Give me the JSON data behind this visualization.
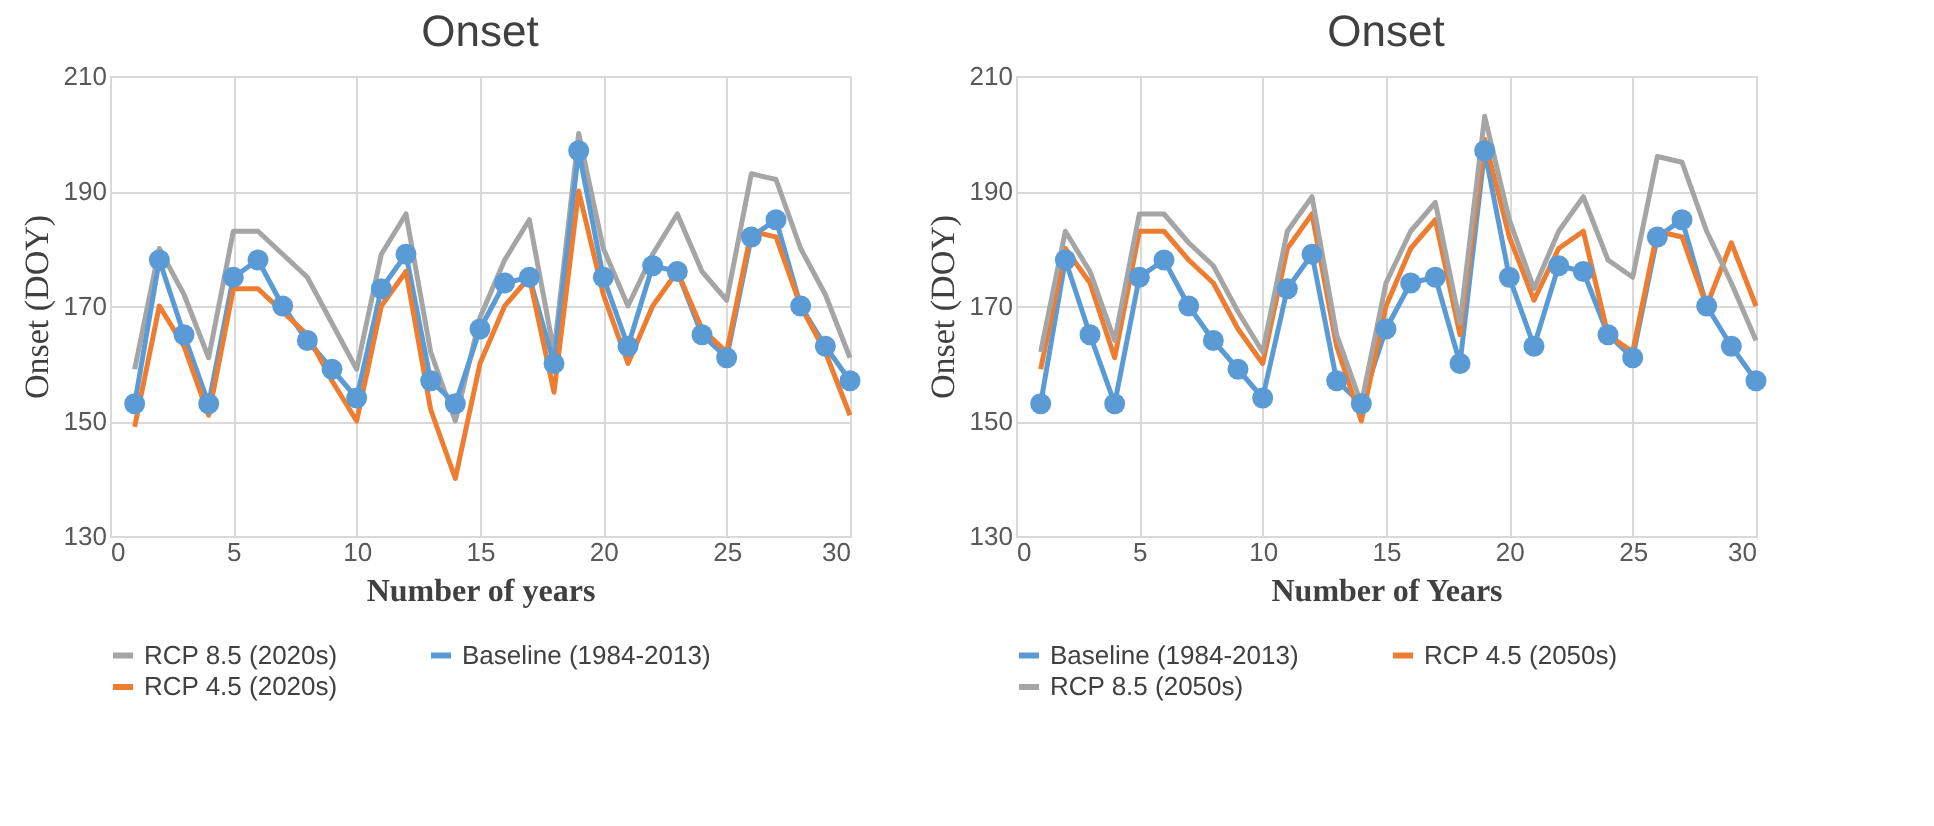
{
  "chart_data": [
    {
      "type": "line",
      "title": "Onset",
      "xlabel": "Number of years",
      "ylabel": "Onset (DOY)",
      "x": [
        1,
        2,
        3,
        4,
        5,
        6,
        7,
        8,
        9,
        10,
        11,
        12,
        13,
        14,
        15,
        16,
        17,
        18,
        19,
        20,
        21,
        22,
        23,
        24,
        25,
        26,
        27,
        28,
        29,
        30
      ],
      "xlim": [
        0,
        30
      ],
      "xticks": [
        0,
        5,
        10,
        15,
        20,
        25,
        30
      ],
      "ylim": [
        130,
        210
      ],
      "yticks": [
        130,
        150,
        170,
        190,
        210
      ],
      "grid": true,
      "legend": "bottom",
      "series": [
        {
          "name": "RCP 8.5 (2020s)",
          "color": "#a5a5a5",
          "marker": "none",
          "values": [
            159,
            180,
            172,
            161,
            183,
            183,
            179,
            175,
            167,
            159,
            179,
            186,
            162,
            150,
            168,
            178,
            185,
            162,
            200,
            180,
            170,
            179,
            186,
            176,
            171,
            193,
            192,
            180,
            172,
            161
          ]
        },
        {
          "name": "Baseline (1984-2013)",
          "color": "#5b9bd5",
          "marker": "circle",
          "values": [
            153,
            178,
            165,
            153,
            175,
            178,
            170,
            164,
            159,
            154,
            173,
            179,
            157,
            153,
            166,
            174,
            175,
            160,
            197,
            175,
            163,
            177,
            176,
            165,
            161,
            182,
            185,
            170,
            163,
            157
          ]
        },
        {
          "name": "RCP 4.5 (2020s)",
          "color": "#ed7d31",
          "marker": "none",
          "values": [
            149,
            170,
            163,
            151,
            173,
            173,
            169,
            165,
            157,
            150,
            170,
            176,
            152,
            140,
            160,
            170,
            175,
            155,
            190,
            172,
            160,
            170,
            176,
            166,
            162,
            183,
            182,
            170,
            162,
            151
          ]
        }
      ]
    },
    {
      "type": "line",
      "title": "Onset",
      "xlabel": "Number of Years",
      "ylabel": "Onset (DOY)",
      "x": [
        1,
        2,
        3,
        4,
        5,
        6,
        7,
        8,
        9,
        10,
        11,
        12,
        13,
        14,
        15,
        16,
        17,
        18,
        19,
        20,
        21,
        22,
        23,
        24,
        25,
        26,
        27,
        28,
        29,
        30
      ],
      "xlim": [
        0,
        30
      ],
      "xticks": [
        0,
        5,
        10,
        15,
        20,
        25,
        30
      ],
      "ylim": [
        130,
        210
      ],
      "yticks": [
        130,
        150,
        170,
        190,
        210
      ],
      "grid": true,
      "legend": "bottom",
      "series": [
        {
          "name": "Baseline (1984-2013)",
          "color": "#5b9bd5",
          "marker": "circle",
          "values": [
            153,
            178,
            165,
            153,
            175,
            178,
            170,
            164,
            159,
            154,
            173,
            179,
            157,
            153,
            166,
            174,
            175,
            160,
            197,
            175,
            163,
            177,
            176,
            165,
            161,
            182,
            185,
            170,
            163,
            157
          ]
        },
        {
          "name": "RCP 4.5 (2050s)",
          "color": "#ed7d31",
          "marker": "none",
          "values": [
            159,
            180,
            174,
            161,
            183,
            183,
            178,
            174,
            166,
            160,
            180,
            186,
            163,
            150,
            170,
            180,
            185,
            165,
            199,
            182,
            171,
            180,
            183,
            165,
            162,
            183,
            182,
            170,
            181,
            170
          ]
        },
        {
          "name": "RCP 8.5 (2050s)",
          "color": "#a5a5a5",
          "marker": "none",
          "values": [
            162,
            183,
            176,
            164,
            186,
            186,
            181,
            177,
            169,
            162,
            183,
            189,
            165,
            153,
            174,
            183,
            188,
            167,
            203,
            185,
            173,
            183,
            189,
            178,
            175,
            196,
            195,
            183,
            174,
            164
          ]
        }
      ]
    }
  ]
}
